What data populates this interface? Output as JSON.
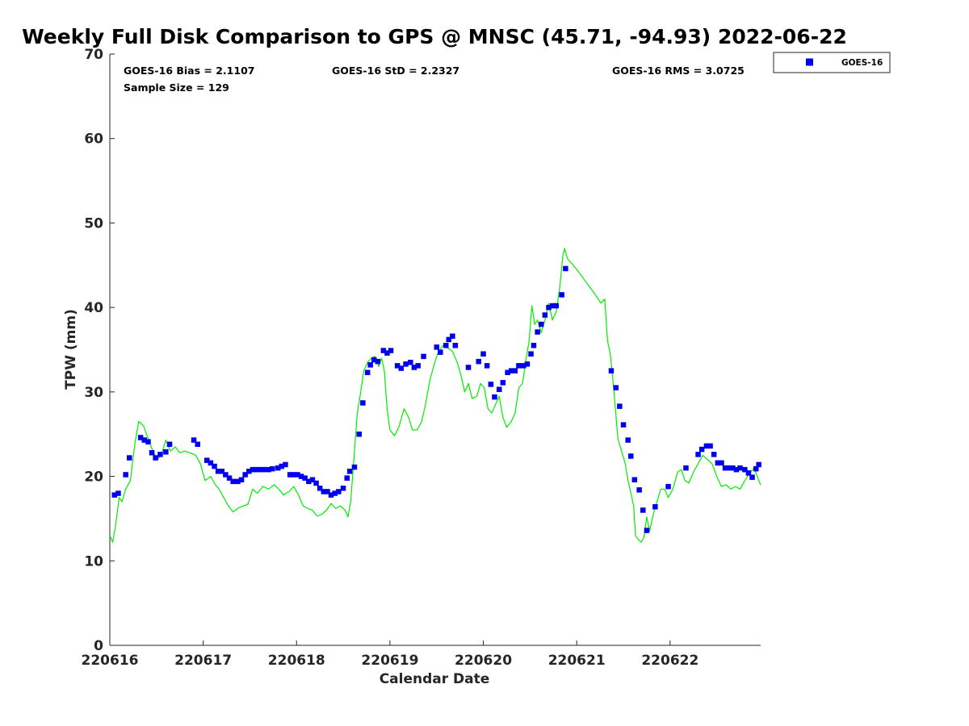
{
  "chart_data": {
    "type": "line+scatter",
    "title": "Weekly Full Disk Comparison to GPS @ MNSC (45.71, -94.93) 2022-06-22",
    "xlabel": "Calendar Date",
    "ylabel": "TPW (mm)",
    "xlim": [
      0,
      6.97
    ],
    "ylim": [
      0,
      70
    ],
    "xticks": [
      {
        "value": 0,
        "label": "220616"
      },
      {
        "value": 1,
        "label": "220617"
      },
      {
        "value": 2,
        "label": "220618"
      },
      {
        "value": 3,
        "label": "220619"
      },
      {
        "value": 4,
        "label": "220620"
      },
      {
        "value": 5,
        "label": "220621"
      },
      {
        "value": 6,
        "label": "220622"
      }
    ],
    "yticks": [
      0,
      10,
      20,
      30,
      40,
      50,
      60,
      70
    ],
    "stats": {
      "bias": "GOES-16 Bias = 2.1107",
      "std": "GOES-16 StD = 2.2327",
      "rms": "GOES-16 RMS = 3.0725",
      "sample": "Sample Size = 129"
    },
    "legend": [
      {
        "name": "GOES-16",
        "marker": "square",
        "color": "#0000ee"
      }
    ],
    "gps_color": "#00ee00",
    "goes_color": "#0000ee",
    "gps_line": [
      [
        0.0,
        13
      ],
      [
        0.03,
        12.2
      ],
      [
        0.06,
        14
      ],
      [
        0.1,
        17.5
      ],
      [
        0.13,
        17.0
      ],
      [
        0.17,
        18.5
      ],
      [
        0.22,
        19.5
      ],
      [
        0.27,
        24
      ],
      [
        0.31,
        26.5
      ],
      [
        0.36,
        26.0
      ],
      [
        0.41,
        24.5
      ],
      [
        0.46,
        23.0
      ],
      [
        0.51,
        22.0
      ],
      [
        0.55,
        22.5
      ],
      [
        0.6,
        24.3
      ],
      [
        0.65,
        23.0
      ],
      [
        0.7,
        23.5
      ],
      [
        0.75,
        22.8
      ],
      [
        0.8,
        23.0
      ],
      [
        0.86,
        22.8
      ],
      [
        0.92,
        22.5
      ],
      [
        0.97,
        21.5
      ],
      [
        1.02,
        19.5
      ],
      [
        1.08,
        20.0
      ],
      [
        1.13,
        19.0
      ],
      [
        1.17,
        18.5
      ],
      [
        1.22,
        17.5
      ],
      [
        1.27,
        16.5
      ],
      [
        1.32,
        15.8
      ],
      [
        1.38,
        16.3
      ],
      [
        1.43,
        16.5
      ],
      [
        1.48,
        16.7
      ],
      [
        1.53,
        18.5
      ],
      [
        1.58,
        18.0
      ],
      [
        1.64,
        18.8
      ],
      [
        1.7,
        18.5
      ],
      [
        1.76,
        19.0
      ],
      [
        1.81,
        18.5
      ],
      [
        1.86,
        17.8
      ],
      [
        1.92,
        18.2
      ],
      [
        1.97,
        18.8
      ],
      [
        2.02,
        17.8
      ],
      [
        2.07,
        16.5
      ],
      [
        2.12,
        16.2
      ],
      [
        2.17,
        16.0
      ],
      [
        2.22,
        15.3
      ],
      [
        2.27,
        15.5
      ],
      [
        2.32,
        16.0
      ],
      [
        2.37,
        16.8
      ],
      [
        2.42,
        16.2
      ],
      [
        2.47,
        16.5
      ],
      [
        2.52,
        16.0
      ],
      [
        2.55,
        15.2
      ],
      [
        2.58,
        17.0
      ],
      [
        2.62,
        23.0
      ],
      [
        2.65,
        27.5
      ],
      [
        2.68,
        29.5
      ],
      [
        2.72,
        32.5
      ],
      [
        2.76,
        33.5
      ],
      [
        2.8,
        34.0
      ],
      [
        2.84,
        34.2
      ],
      [
        2.88,
        33.0
      ],
      [
        2.91,
        34.0
      ],
      [
        2.94,
        32.5
      ],
      [
        2.97,
        28.0
      ],
      [
        3.0,
        25.5
      ],
      [
        3.05,
        24.8
      ],
      [
        3.1,
        26.0
      ],
      [
        3.15,
        28.0
      ],
      [
        3.2,
        27.0
      ],
      [
        3.24,
        25.5
      ],
      [
        3.29,
        25.5
      ],
      [
        3.34,
        26.5
      ],
      [
        3.38,
        28.5
      ],
      [
        3.43,
        31.5
      ],
      [
        3.48,
        33.5
      ],
      [
        3.52,
        34.8
      ],
      [
        3.57,
        35.5
      ],
      [
        3.62,
        35.2
      ],
      [
        3.67,
        34.8
      ],
      [
        3.72,
        33.5
      ],
      [
        3.76,
        32.0
      ],
      [
        3.8,
        30.0
      ],
      [
        3.84,
        31.0
      ],
      [
        3.88,
        29.2
      ],
      [
        3.93,
        29.5
      ],
      [
        3.97,
        31.0
      ],
      [
        4.01,
        30.5
      ],
      [
        4.05,
        28.0
      ],
      [
        4.09,
        27.5
      ],
      [
        4.13,
        28.5
      ],
      [
        4.17,
        29.5
      ],
      [
        4.21,
        27.0
      ],
      [
        4.25,
        25.8
      ],
      [
        4.3,
        26.5
      ],
      [
        4.34,
        27.5
      ],
      [
        4.38,
        30.5
      ],
      [
        4.42,
        31.0
      ],
      [
        4.46,
        34.0
      ],
      [
        4.49,
        36.0
      ],
      [
        4.52,
        40.2
      ],
      [
        4.55,
        38.0
      ],
      [
        4.58,
        38.5
      ],
      [
        4.62,
        37.0
      ],
      [
        4.66,
        38.5
      ],
      [
        4.7,
        40.5
      ],
      [
        4.74,
        38.5
      ],
      [
        4.78,
        39.5
      ],
      [
        4.82,
        42.5
      ],
      [
        4.85,
        46.0
      ],
      [
        4.87,
        47.0
      ],
      [
        4.9,
        45.8
      ],
      [
        5.0,
        44.5
      ],
      [
        5.1,
        43.0
      ],
      [
        5.2,
        41.5
      ],
      [
        5.26,
        40.5
      ],
      [
        5.3,
        41.0
      ],
      [
        5.33,
        36.0
      ],
      [
        5.36,
        34.5
      ],
      [
        5.4,
        30.0
      ],
      [
        5.44,
        24.5
      ],
      [
        5.48,
        23.0
      ],
      [
        5.52,
        21.5
      ],
      [
        5.55,
        19.5
      ],
      [
        5.58,
        18.0
      ],
      [
        5.61,
        16.5
      ],
      [
        5.63,
        13.0
      ],
      [
        5.66,
        12.5
      ],
      [
        5.69,
        12.2
      ],
      [
        5.72,
        12.8
      ],
      [
        5.75,
        15.2
      ],
      [
        5.78,
        13.5
      ],
      [
        5.82,
        15.5
      ],
      [
        5.86,
        17.0
      ],
      [
        5.9,
        18.5
      ],
      [
        5.94,
        18.5
      ],
      [
        5.98,
        17.5
      ],
      [
        6.03,
        18.5
      ],
      [
        6.08,
        20.5
      ],
      [
        6.12,
        20.8
      ],
      [
        6.16,
        19.5
      ],
      [
        6.2,
        19.2
      ],
      [
        6.25,
        20.5
      ],
      [
        6.3,
        21.5
      ],
      [
        6.35,
        22.5
      ],
      [
        6.4,
        22.0
      ],
      [
        6.45,
        21.5
      ],
      [
        6.5,
        20.0
      ],
      [
        6.55,
        18.8
      ],
      [
        6.6,
        19.0
      ],
      [
        6.65,
        18.5
      ],
      [
        6.7,
        18.8
      ],
      [
        6.75,
        18.5
      ],
      [
        6.8,
        19.5
      ],
      [
        6.86,
        20.5
      ],
      [
        6.9,
        21.0
      ],
      [
        6.95,
        19.5
      ],
      [
        6.97,
        19.0
      ]
    ],
    "goes_points": [
      [
        0.05,
        17.8
      ],
      [
        0.09,
        18.0
      ],
      [
        0.17,
        20.2
      ],
      [
        0.21,
        22.2
      ],
      [
        0.33,
        24.6
      ],
      [
        0.37,
        24.3
      ],
      [
        0.41,
        24.1
      ],
      [
        0.45,
        22.8
      ],
      [
        0.49,
        22.2
      ],
      [
        0.54,
        22.6
      ],
      [
        0.6,
        22.9
      ],
      [
        0.64,
        23.8
      ],
      [
        0.9,
        24.3
      ],
      [
        0.94,
        23.8
      ],
      [
        1.04,
        21.9
      ],
      [
        1.08,
        21.6
      ],
      [
        1.12,
        21.2
      ],
      [
        1.16,
        20.6
      ],
      [
        1.2,
        20.6
      ],
      [
        1.24,
        20.2
      ],
      [
        1.28,
        19.8
      ],
      [
        1.32,
        19.4
      ],
      [
        1.37,
        19.4
      ],
      [
        1.41,
        19.6
      ],
      [
        1.45,
        20.2
      ],
      [
        1.49,
        20.6
      ],
      [
        1.53,
        20.8
      ],
      [
        1.57,
        20.8
      ],
      [
        1.61,
        20.8
      ],
      [
        1.65,
        20.8
      ],
      [
        1.7,
        20.8
      ],
      [
        1.74,
        20.9
      ],
      [
        1.8,
        21.0
      ],
      [
        1.84,
        21.2
      ],
      [
        1.88,
        21.4
      ],
      [
        1.93,
        20.2
      ],
      [
        1.97,
        20.2
      ],
      [
        2.01,
        20.2
      ],
      [
        2.05,
        20.0
      ],
      [
        2.09,
        19.8
      ],
      [
        2.13,
        19.4
      ],
      [
        2.17,
        19.6
      ],
      [
        2.21,
        19.2
      ],
      [
        2.25,
        18.6
      ],
      [
        2.29,
        18.2
      ],
      [
        2.33,
        18.2
      ],
      [
        2.37,
        17.8
      ],
      [
        2.41,
        18.0
      ],
      [
        2.45,
        18.2
      ],
      [
        2.5,
        18.6
      ],
      [
        2.54,
        19.8
      ],
      [
        2.57,
        20.6
      ],
      [
        2.62,
        21.1
      ],
      [
        2.67,
        25.0
      ],
      [
        2.71,
        28.7
      ],
      [
        2.76,
        32.3
      ],
      [
        2.79,
        33.2
      ],
      [
        2.83,
        33.8
      ],
      [
        2.87,
        33.6
      ],
      [
        2.93,
        34.9
      ],
      [
        2.97,
        34.6
      ],
      [
        3.01,
        34.9
      ],
      [
        3.08,
        33.1
      ],
      [
        3.12,
        32.8
      ],
      [
        3.17,
        33.3
      ],
      [
        3.22,
        33.5
      ],
      [
        3.26,
        32.9
      ],
      [
        3.3,
        33.1
      ],
      [
        3.36,
        34.2
      ],
      [
        3.5,
        35.3
      ],
      [
        3.54,
        34.7
      ],
      [
        3.6,
        35.5
      ],
      [
        3.63,
        36.2
      ],
      [
        3.67,
        36.6
      ],
      [
        3.7,
        35.5
      ],
      [
        3.84,
        32.9
      ],
      [
        3.95,
        33.6
      ],
      [
        4.0,
        34.5
      ],
      [
        4.04,
        33.1
      ],
      [
        4.08,
        30.9
      ],
      [
        4.12,
        29.4
      ],
      [
        4.17,
        30.3
      ],
      [
        4.21,
        31.1
      ],
      [
        4.26,
        32.3
      ],
      [
        4.3,
        32.5
      ],
      [
        4.34,
        32.5
      ],
      [
        4.38,
        33.1
      ],
      [
        4.43,
        33.1
      ],
      [
        4.47,
        33.3
      ],
      [
        4.51,
        34.5
      ],
      [
        4.54,
        35.5
      ],
      [
        4.58,
        37.1
      ],
      [
        4.62,
        38.0
      ],
      [
        4.66,
        39.1
      ],
      [
        4.7,
        40.0
      ],
      [
        4.74,
        40.2
      ],
      [
        4.78,
        40.2
      ],
      [
        4.84,
        41.5
      ],
      [
        4.88,
        44.6
      ],
      [
        5.37,
        32.5
      ],
      [
        5.42,
        30.5
      ],
      [
        5.46,
        28.3
      ],
      [
        5.5,
        26.1
      ],
      [
        5.55,
        24.3
      ],
      [
        5.58,
        22.4
      ],
      [
        5.62,
        19.6
      ],
      [
        5.67,
        18.4
      ],
      [
        5.71,
        16.0
      ],
      [
        5.75,
        13.6
      ],
      [
        5.84,
        16.4
      ],
      [
        5.98,
        18.8
      ],
      [
        6.17,
        21.0
      ],
      [
        6.3,
        22.6
      ],
      [
        6.34,
        23.2
      ],
      [
        6.39,
        23.6
      ],
      [
        6.43,
        23.6
      ],
      [
        6.47,
        22.6
      ],
      [
        6.51,
        21.6
      ],
      [
        6.55,
        21.6
      ],
      [
        6.59,
        21.0
      ],
      [
        6.63,
        21.0
      ],
      [
        6.67,
        21.0
      ],
      [
        6.71,
        20.8
      ],
      [
        6.75,
        21.0
      ],
      [
        6.8,
        20.8
      ],
      [
        6.84,
        20.4
      ],
      [
        6.88,
        19.9
      ],
      [
        6.92,
        20.9
      ],
      [
        6.95,
        21.4
      ]
    ]
  }
}
